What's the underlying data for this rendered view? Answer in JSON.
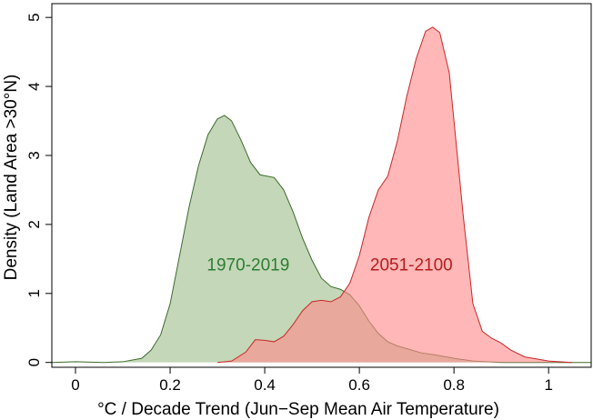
{
  "chart_data": {
    "type": "area",
    "title": "",
    "xlabel": "°C / Decade Trend (Jun−Sep Mean Air Temperature)",
    "ylabel": "Density (Land Area >30°N)",
    "xlim": [
      -0.05,
      1.09
    ],
    "ylim": [
      -0.07,
      5.2
    ],
    "xticks": [
      0,
      0.2,
      0.4,
      0.6,
      0.8,
      1
    ],
    "xtick_labels": [
      "0",
      "0.2",
      "0.4",
      "0.6",
      "0.8",
      "1"
    ],
    "yticks": [
      0,
      1,
      2,
      3,
      4,
      5
    ],
    "ytick_labels": [
      "0",
      "1",
      "2",
      "3",
      "4",
      "5"
    ],
    "series": [
      {
        "name": "1970-2019",
        "fill": "#93b77f",
        "fill_opacity": 0.55,
        "line": "#3d6b2a",
        "label_color": "#2e7d32",
        "label_at": [
          0.365,
          1.33
        ],
        "points": [
          [
            -0.05,
            0.0
          ],
          [
            0.0,
            0.01
          ],
          [
            0.06,
            0.0
          ],
          [
            0.1,
            0.01
          ],
          [
            0.14,
            0.06
          ],
          [
            0.16,
            0.18
          ],
          [
            0.18,
            0.4
          ],
          [
            0.2,
            0.85
          ],
          [
            0.22,
            1.55
          ],
          [
            0.24,
            2.25
          ],
          [
            0.26,
            2.85
          ],
          [
            0.28,
            3.3
          ],
          [
            0.3,
            3.53
          ],
          [
            0.315,
            3.58
          ],
          [
            0.33,
            3.5
          ],
          [
            0.35,
            3.22
          ],
          [
            0.37,
            2.9
          ],
          [
            0.39,
            2.72
          ],
          [
            0.42,
            2.68
          ],
          [
            0.44,
            2.5
          ],
          [
            0.46,
            2.18
          ],
          [
            0.48,
            1.8
          ],
          [
            0.5,
            1.48
          ],
          [
            0.52,
            1.22
          ],
          [
            0.54,
            1.1
          ],
          [
            0.56,
            1.06
          ],
          [
            0.58,
            0.98
          ],
          [
            0.6,
            0.82
          ],
          [
            0.62,
            0.6
          ],
          [
            0.64,
            0.42
          ],
          [
            0.66,
            0.3
          ],
          [
            0.68,
            0.24
          ],
          [
            0.7,
            0.2
          ],
          [
            0.73,
            0.14
          ],
          [
            0.76,
            0.11
          ],
          [
            0.8,
            0.06
          ],
          [
            0.84,
            0.02
          ],
          [
            0.9,
            0.0
          ],
          [
            1.09,
            0.0
          ]
        ]
      },
      {
        "name": "2051-2100",
        "fill": "#ff8a8a",
        "fill_opacity": 0.62,
        "line": "#c62828",
        "label_color": "#b71c1c",
        "label_at": [
          0.71,
          1.33
        ],
        "points": [
          [
            0.3,
            0.0
          ],
          [
            0.33,
            0.02
          ],
          [
            0.36,
            0.15
          ],
          [
            0.38,
            0.33
          ],
          [
            0.4,
            0.32
          ],
          [
            0.42,
            0.3
          ],
          [
            0.44,
            0.38
          ],
          [
            0.46,
            0.55
          ],
          [
            0.48,
            0.75
          ],
          [
            0.5,
            0.88
          ],
          [
            0.52,
            0.9
          ],
          [
            0.54,
            0.88
          ],
          [
            0.56,
            0.95
          ],
          [
            0.58,
            1.15
          ],
          [
            0.6,
            1.55
          ],
          [
            0.62,
            2.1
          ],
          [
            0.64,
            2.5
          ],
          [
            0.66,
            2.7
          ],
          [
            0.68,
            3.2
          ],
          [
            0.7,
            3.85
          ],
          [
            0.72,
            4.4
          ],
          [
            0.74,
            4.8
          ],
          [
            0.755,
            4.86
          ],
          [
            0.77,
            4.78
          ],
          [
            0.79,
            4.2
          ],
          [
            0.8,
            3.5
          ],
          [
            0.82,
            2.1
          ],
          [
            0.84,
            0.85
          ],
          [
            0.86,
            0.45
          ],
          [
            0.88,
            0.35
          ],
          [
            0.9,
            0.28
          ],
          [
            0.92,
            0.18
          ],
          [
            0.95,
            0.08
          ],
          [
            1.0,
            0.02
          ],
          [
            1.05,
            0.0
          ]
        ]
      }
    ]
  }
}
